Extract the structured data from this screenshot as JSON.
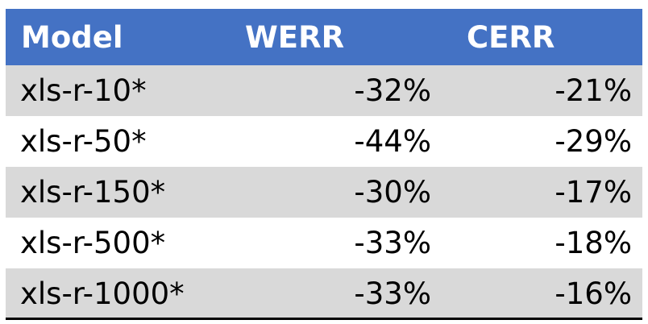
{
  "chart_data": {
    "type": "table",
    "columns": [
      "Model",
      "WERR",
      "CERR"
    ],
    "rows": [
      [
        "xls-r-10*",
        "-32%",
        "-21%"
      ],
      [
        "xls-r-50*",
        "-44%",
        "-29%"
      ],
      [
        "xls-r-150*",
        "-30%",
        "-17%"
      ],
      [
        "xls-r-500*",
        "-33%",
        "-18%"
      ],
      [
        "xls-r-1000*",
        "-33%",
        "-16%"
      ]
    ]
  },
  "colors": {
    "header_bg": "#4472c4",
    "header_text": "#ffffff",
    "band_shade": "#d9d9d9",
    "band_plain": "#ffffff",
    "rule": "#000000"
  }
}
